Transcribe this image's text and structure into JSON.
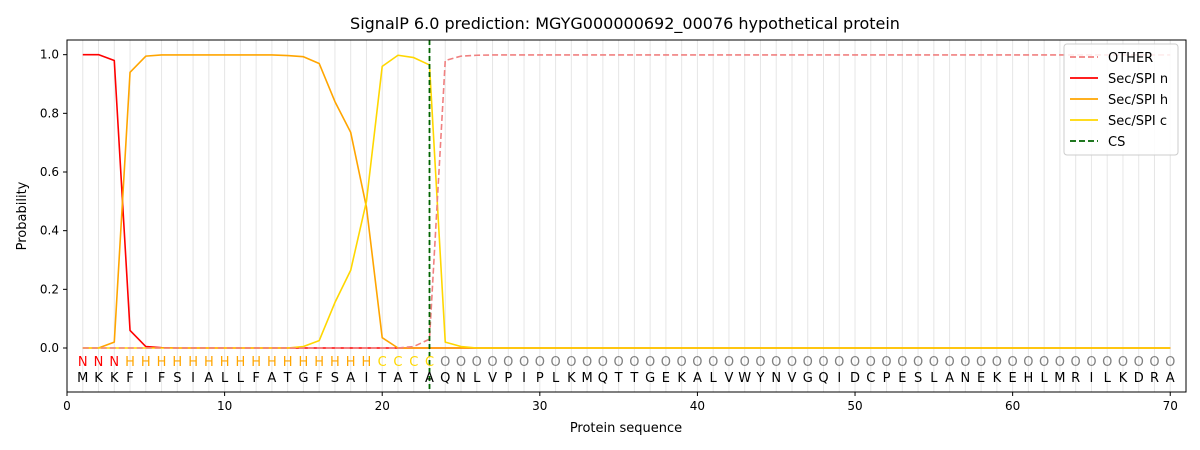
{
  "chart_data": {
    "type": "line",
    "title": "SignalP 6.0 prediction: MGYG000000692_00076 hypothetical protein",
    "xlabel": "Protein sequence",
    "ylabel": "Probability",
    "xlim": [
      0,
      71
    ],
    "ylim": [
      -0.15,
      1.05
    ],
    "x_ticks": [
      0,
      10,
      20,
      30,
      40,
      50,
      60,
      70
    ],
    "y_ticks": [
      0.0,
      0.2,
      0.4,
      0.6,
      0.8,
      1.0
    ],
    "grid": "vertical lines at each residue",
    "legend_position": "top-right",
    "sequence": [
      "M",
      "K",
      "K",
      "F",
      "I",
      "F",
      "S",
      "I",
      "A",
      "L",
      "L",
      "F",
      "A",
      "T",
      "G",
      "F",
      "S",
      "A",
      "I",
      "T",
      "A",
      "T",
      "A",
      "Q",
      "N",
      "L",
      "V",
      "P",
      "I",
      "P",
      "L",
      "K",
      "M",
      "Q",
      "T",
      "T",
      "G",
      "E",
      "K",
      "A",
      "L",
      "V",
      "W",
      "Y",
      "N",
      "V",
      "G",
      "Q",
      "I",
      "D",
      "C",
      "P",
      "E",
      "S",
      "L",
      "A",
      "N",
      "E",
      "K",
      "E",
      "H",
      "L",
      "M",
      "R",
      "I",
      "L",
      "K",
      "D",
      "R",
      "A"
    ],
    "region_labels": [
      "N",
      "N",
      "N",
      "H",
      "H",
      "H",
      "H",
      "H",
      "H",
      "H",
      "H",
      "H",
      "H",
      "H",
      "H",
      "H",
      "H",
      "H",
      "H",
      "C",
      "C",
      "C",
      "C",
      "O",
      "O",
      "O",
      "O",
      "O",
      "O",
      "O",
      "O",
      "O",
      "O",
      "O",
      "O",
      "O",
      "O",
      "O",
      "O",
      "O",
      "O",
      "O",
      "O",
      "O",
      "O",
      "O",
      "O",
      "O",
      "O",
      "O",
      "O",
      "O",
      "O",
      "O",
      "O",
      "O",
      "O",
      "O",
      "O",
      "O",
      "O",
      "O",
      "O",
      "O",
      "O",
      "O",
      "O",
      "O",
      "O",
      "O"
    ],
    "region_colors": {
      "N": "#ff0000",
      "H": "#ffa500",
      "C": "#ffd700",
      "O": "#808080"
    },
    "cleavage_site": 23,
    "series": [
      {
        "name": "OTHER",
        "color": "#f08080",
        "dash": "dashed",
        "values": [
          0,
          0,
          0,
          0,
          0,
          0,
          0,
          0,
          0,
          0,
          0,
          0,
          0,
          0,
          0,
          0,
          0,
          0,
          0,
          0,
          0,
          0.005,
          0.03,
          0.98,
          0.995,
          0.998,
          0.999,
          0.999,
          0.999,
          0.999,
          0.999,
          0.999,
          0.999,
          0.999,
          0.999,
          0.999,
          0.999,
          0.999,
          0.999,
          0.999,
          0.999,
          0.999,
          0.999,
          0.999,
          0.999,
          0.999,
          0.999,
          0.999,
          0.999,
          0.999,
          0.999,
          0.999,
          0.999,
          0.999,
          0.999,
          0.999,
          0.999,
          0.999,
          0.999,
          0.999,
          0.999,
          0.999,
          0.999,
          0.999,
          0.999,
          0.999,
          0.999,
          0.999,
          0.999,
          0.999
        ]
      },
      {
        "name": "Sec/SPI n",
        "color": "#ff0000",
        "dash": "solid",
        "values": [
          1.0,
          1.0,
          0.98,
          0.06,
          0.005,
          0.001,
          0,
          0,
          0,
          0,
          0,
          0,
          0,
          0,
          0,
          0,
          0,
          0,
          0,
          0,
          0,
          0,
          0,
          0,
          0,
          0,
          0,
          0,
          0,
          0,
          0,
          0,
          0,
          0,
          0,
          0,
          0,
          0,
          0,
          0,
          0,
          0,
          0,
          0,
          0,
          0,
          0,
          0,
          0,
          0,
          0,
          0,
          0,
          0,
          0,
          0,
          0,
          0,
          0,
          0,
          0,
          0,
          0,
          0,
          0,
          0,
          0,
          0,
          0,
          0
        ]
      },
      {
        "name": "Sec/SPI h",
        "color": "#ffa500",
        "dash": "solid",
        "values": [
          0,
          0,
          0.02,
          0.94,
          0.995,
          0.999,
          0.999,
          0.999,
          0.999,
          0.999,
          0.999,
          0.999,
          0.999,
          0.997,
          0.993,
          0.97,
          0.84,
          0.735,
          0.48,
          0.035,
          0,
          0,
          0,
          0,
          0,
          0,
          0,
          0,
          0,
          0,
          0,
          0,
          0,
          0,
          0,
          0,
          0,
          0,
          0,
          0,
          0,
          0,
          0,
          0,
          0,
          0,
          0,
          0,
          0,
          0,
          0,
          0,
          0,
          0,
          0,
          0,
          0,
          0,
          0,
          0,
          0,
          0,
          0,
          0,
          0,
          0,
          0,
          0,
          0,
          0
        ]
      },
      {
        "name": "Sec/SPI c",
        "color": "#ffd700",
        "dash": "solid",
        "values": [
          0,
          0,
          0,
          0,
          0,
          0,
          0,
          0,
          0,
          0,
          0,
          0,
          0,
          0,
          0.005,
          0.025,
          0.155,
          0.265,
          0.5,
          0.96,
          0.998,
          0.99,
          0.965,
          0.02,
          0.005,
          0,
          0,
          0,
          0,
          0,
          0,
          0,
          0,
          0,
          0,
          0,
          0,
          0,
          0,
          0,
          0,
          0,
          0,
          0,
          0,
          0,
          0,
          0,
          0,
          0,
          0,
          0,
          0,
          0,
          0,
          0,
          0,
          0,
          0,
          0,
          0,
          0,
          0,
          0,
          0,
          0,
          0,
          0,
          0,
          0
        ]
      }
    ],
    "legend": [
      {
        "label": "OTHER",
        "color": "#f08080",
        "dash": "dashed"
      },
      {
        "label": "Sec/SPI n",
        "color": "#ff0000",
        "dash": "solid"
      },
      {
        "label": "Sec/SPI h",
        "color": "#ffa500",
        "dash": "solid"
      },
      {
        "label": "Sec/SPI c",
        "color": "#ffd700",
        "dash": "solid"
      },
      {
        "label": "CS",
        "color": "#006400",
        "dash": "dashed"
      }
    ]
  }
}
